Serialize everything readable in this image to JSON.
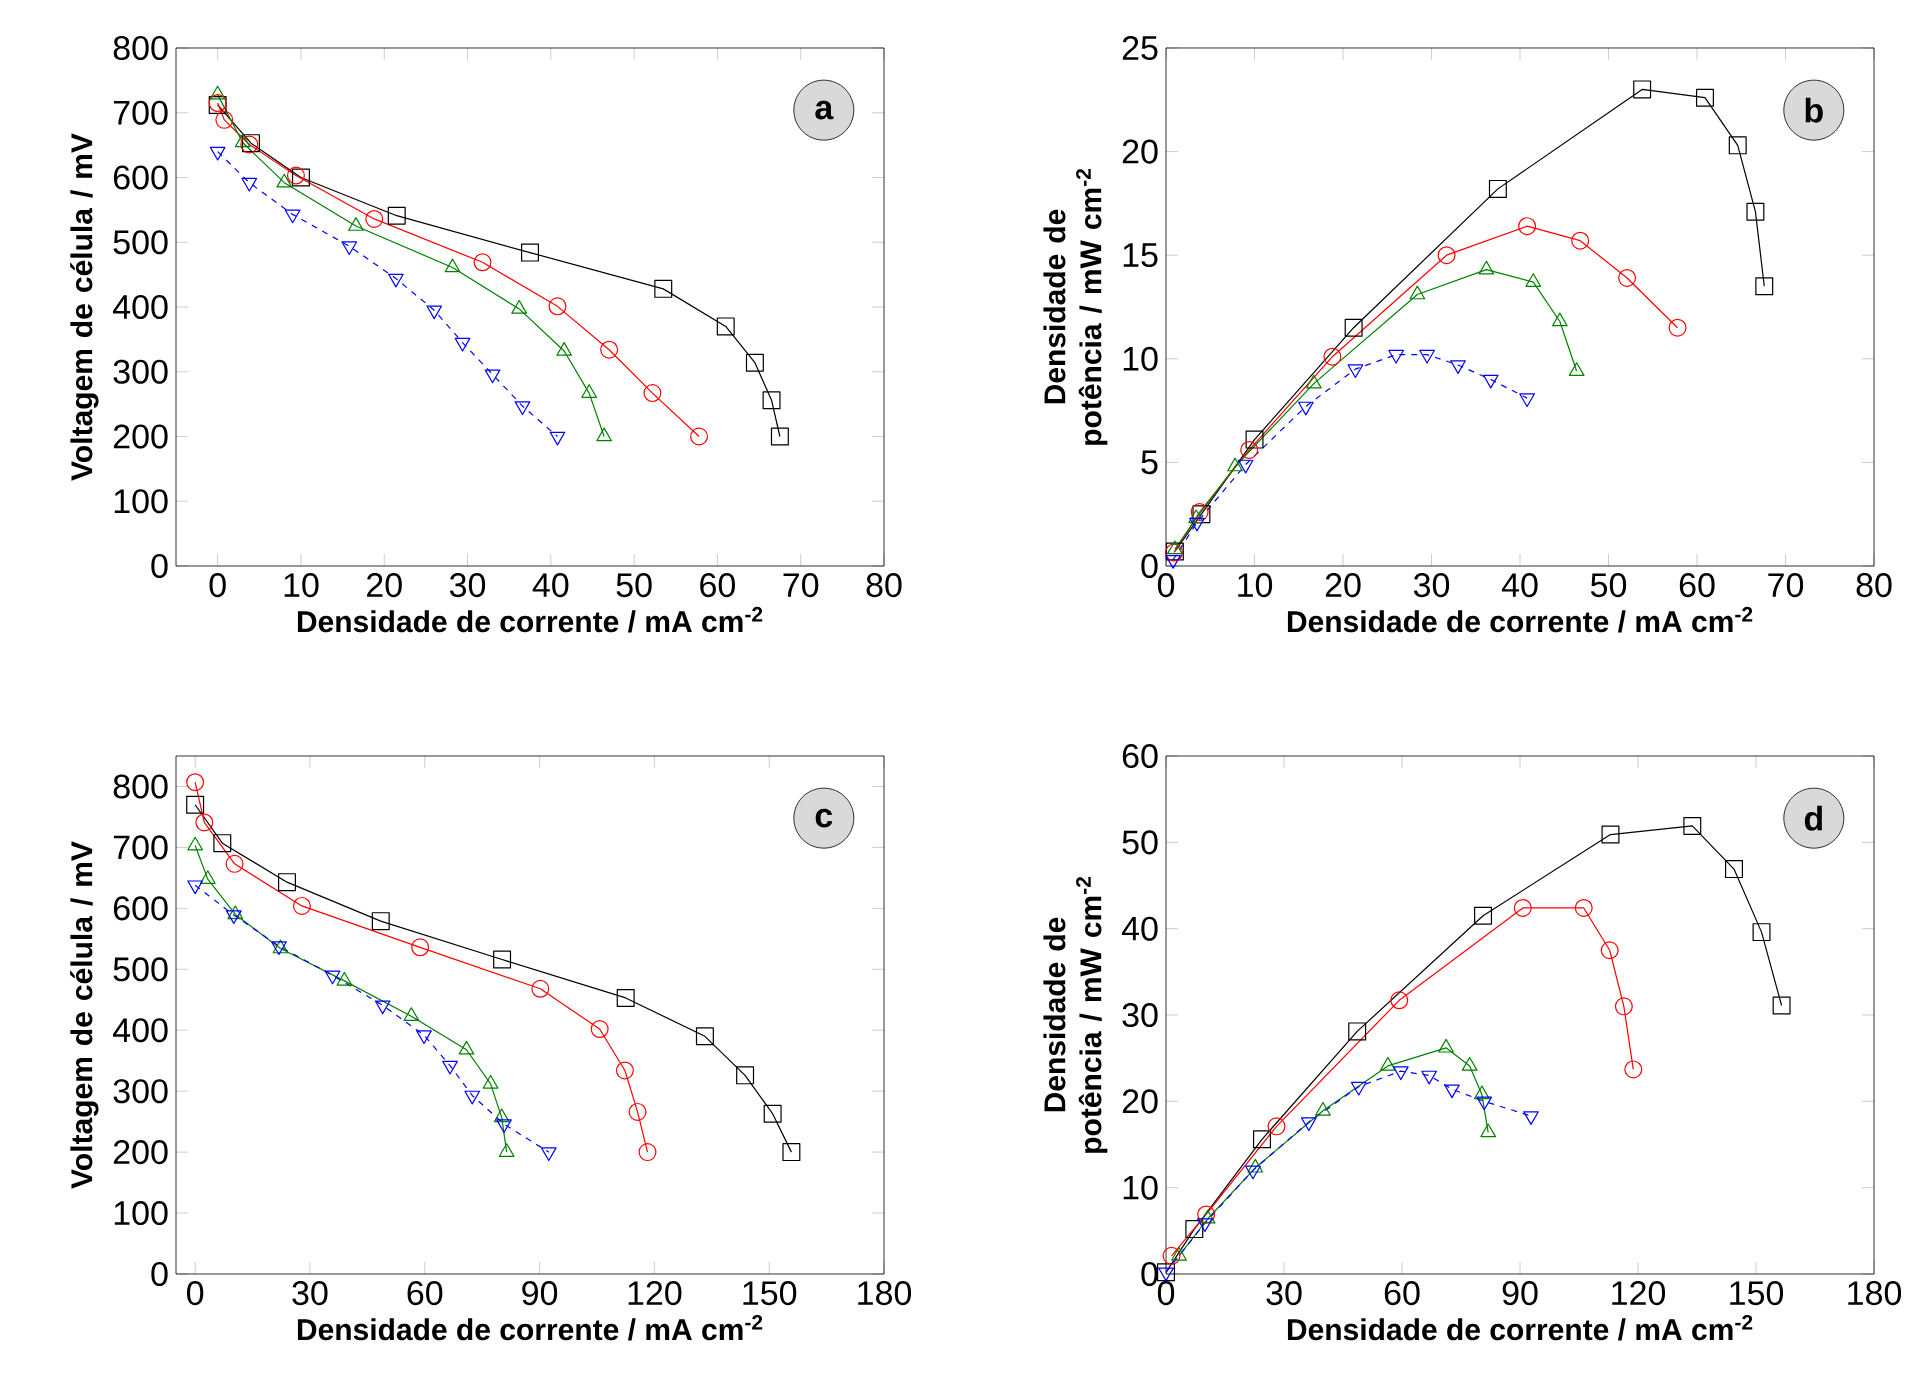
{
  "chart_data": [
    {
      "type": "line",
      "xlabel": "Densidade de corrente / mA cm$^{-2}$",
      "ylabel": "Voltagem de célula / mV",
      "xlim": [
        -5,
        80
      ],
      "ylim": [
        0,
        800
      ],
      "xticks": [
        0,
        10,
        20,
        30,
        40,
        50,
        60,
        70,
        80
      ],
      "yticks": [
        0,
        100,
        200,
        300,
        400,
        500,
        600,
        700,
        800
      ],
      "annotations": [
        "a"
      ],
      "series": [
        {
          "color": "#000000",
          "marker": "square",
          "line_style": "solid",
          "x": [
            0,
            4,
            10,
            21.5,
            37.5,
            53.5,
            61,
            64.5,
            66.5,
            67.5
          ],
          "values": [
            712,
            653,
            600,
            541,
            484,
            428,
            370,
            314,
            256,
            200
          ]
        },
        {
          "color": "#ff0000",
          "marker": "circle",
          "line_style": "solid",
          "x": [
            0,
            0.8,
            3.8,
            9.4,
            18.8,
            31.8,
            40.8,
            47,
            52.2,
            57.8
          ],
          "values": [
            715,
            689,
            651,
            603,
            536,
            469,
            401,
            334,
            267,
            200
          ]
        },
        {
          "color": "#008000",
          "marker": "triangle",
          "line_style": "solid",
          "x": [
            0,
            3,
            8,
            16.6,
            28.2,
            36.2,
            41.6,
            44.6,
            46.4
          ],
          "values": [
            728,
            654,
            592,
            525,
            461,
            397,
            332,
            267,
            200
          ]
        },
        {
          "color": "#0000ff",
          "marker": "triangle-down",
          "line_style": "dashed",
          "x": [
            0,
            3.8,
            9,
            15.8,
            21.4,
            26,
            29.4,
            33,
            36.6,
            40.8
          ],
          "values": [
            640,
            592,
            543,
            494,
            444,
            395,
            345,
            296,
            247,
            200
          ]
        }
      ]
    },
    {
      "type": "line",
      "xlabel": "Densidade de corrente / mA cm$^{-2}$",
      "ylabel": "Densidade de potência / mW cm$^{-2}$",
      "xlim": [
        0,
        80
      ],
      "ylim": [
        0,
        25
      ],
      "xticks": [
        0,
        10,
        20,
        30,
        40,
        50,
        60,
        70,
        80
      ],
      "yticks": [
        0,
        5,
        10,
        15,
        20,
        25
      ],
      "annotations": [
        "b"
      ],
      "series": [
        {
          "color": "#000000",
          "marker": "square",
          "line_style": "solid",
          "x": [
            1,
            4,
            10,
            21.2,
            37.5,
            53.8,
            60.9,
            64.6,
            66.6,
            67.6
          ],
          "values": [
            0.7,
            2.5,
            6.1,
            11.5,
            18.2,
            23.0,
            22.6,
            20.3,
            17.1,
            13.5
          ]
        },
        {
          "color": "#ff0000",
          "marker": "circle",
          "line_style": "solid",
          "x": [
            0.9,
            3.8,
            9.4,
            18.8,
            31.7,
            40.8,
            46.8,
            52.1,
            57.8
          ],
          "values": [
            0.65,
            2.6,
            5.6,
            10.1,
            15.0,
            16.4,
            15.7,
            13.9,
            11.5
          ]
        },
        {
          "color": "#008000",
          "marker": "triangle",
          "line_style": "solid",
          "x": [
            1,
            3.4,
            7.8,
            16.7,
            28.4,
            36.2,
            41.5,
            44.5,
            46.4
          ],
          "values": [
            0.8,
            2.3,
            4.8,
            8.8,
            13.1,
            14.3,
            13.7,
            11.8,
            9.4
          ]
        },
        {
          "color": "#0000ff",
          "marker": "triangle-down",
          "line_style": "dashed",
          "x": [
            0.8,
            3.5,
            9,
            15.8,
            21.4,
            26,
            29.5,
            33,
            36.7,
            40.8
          ],
          "values": [
            0.3,
            2.1,
            4.9,
            7.7,
            9.5,
            10.2,
            10.2,
            9.7,
            9.0,
            8.1
          ]
        }
      ]
    },
    {
      "type": "line",
      "xlabel": "Densidade de corrente / mA cm$^{-2}$",
      "ylabel": "Voltagem de célula / mV",
      "xlim": [
        -5,
        180
      ],
      "ylim": [
        0,
        850
      ],
      "xticks": [
        0,
        30,
        60,
        90,
        120,
        150,
        180
      ],
      "yticks": [
        0,
        100,
        200,
        300,
        400,
        500,
        600,
        700,
        800
      ],
      "annotations": [
        "c"
      ],
      "series": [
        {
          "color": "#000000",
          "marker": "square",
          "line_style": "solid",
          "x": [
            0,
            7.1,
            24,
            48.5,
            80.2,
            112.5,
            133.2,
            143.7,
            150.9,
            155.8
          ],
          "values": [
            770,
            707,
            643,
            579,
            516,
            453,
            390,
            326,
            263,
            200
          ]
        },
        {
          "color": "#ff0000",
          "marker": "circle",
          "line_style": "solid",
          "x": [
            0,
            2.4,
            10.3,
            27.9,
            58.8,
            90.2,
            105.7,
            112.3,
            115.6,
            118.2
          ],
          "values": [
            807,
            741,
            673,
            604,
            536,
            468,
            402,
            334,
            266,
            200
          ]
        },
        {
          "color": "#008000",
          "marker": "triangle",
          "line_style": "solid",
          "x": [
            0,
            3.3,
            10.5,
            22.3,
            39,
            56.5,
            70.9,
            77.2,
            80.1,
            81.4
          ],
          "values": [
            703,
            648,
            590,
            534,
            481,
            423,
            368,
            312,
            257,
            200
          ]
        },
        {
          "color": "#0000ff",
          "marker": "triangle-down",
          "line_style": "dashed",
          "x": [
            0,
            10.1,
            21.9,
            35.9,
            49,
            59.8,
            66.6,
            72.4,
            80.7,
            92.4
          ],
          "values": [
            638,
            589,
            538,
            490,
            441,
            392,
            342,
            293,
            246,
            200
          ]
        }
      ]
    },
    {
      "type": "line",
      "xlabel": "Densidade de corrente / mA cm$^{-2}$",
      "ylabel": "Densidade de potência / mW cm$^{-2}$",
      "xlim": [
        0,
        180
      ],
      "ylim": [
        0,
        60
      ],
      "xticks": [
        0,
        30,
        60,
        90,
        120,
        150,
        180
      ],
      "yticks": [
        0,
        10,
        20,
        30,
        40,
        50,
        60
      ],
      "annotations": [
        "d"
      ],
      "series": [
        {
          "color": "#000000",
          "marker": "square",
          "line_style": "solid",
          "x": [
            0,
            7.2,
            24.4,
            48.6,
            80.6,
            113,
            133.8,
            144.4,
            151.4,
            156.5
          ],
          "values": [
            0.2,
            5.2,
            15.6,
            28.1,
            41.5,
            50.9,
            51.9,
            46.9,
            39.6,
            31.1
          ]
        },
        {
          "color": "#ff0000",
          "marker": "circle",
          "line_style": "solid",
          "x": [
            1.4,
            10.2,
            28.1,
            59.3,
            90.7,
            106.2,
            112.8,
            116.4,
            118.8
          ],
          "values": [
            2.1,
            6.9,
            17.1,
            31.7,
            42.4,
            42.4,
            37.5,
            31.0,
            23.7
          ]
        },
        {
          "color": "#008000",
          "marker": "triangle",
          "line_style": "solid",
          "x": [
            3.3,
            10.6,
            22.7,
            39.9,
            56.4,
            71.2,
            77.2,
            80.3,
            81.9
          ],
          "values": [
            2.1,
            6.4,
            12.3,
            18.9,
            24.1,
            26.2,
            24.1,
            20.8,
            16.4
          ]
        },
        {
          "color": "#0000ff",
          "marker": "triangle-down",
          "line_style": "dashed",
          "x": [
            0,
            9.9,
            22.1,
            36.3,
            49,
            59.7,
            66.9,
            72.7,
            80.9,
            92.8
          ],
          "values": [
            0.2,
            5.9,
            12.0,
            17.6,
            21.7,
            23.5,
            23.0,
            21.4,
            20.0,
            18.3
          ]
        }
      ]
    }
  ]
}
